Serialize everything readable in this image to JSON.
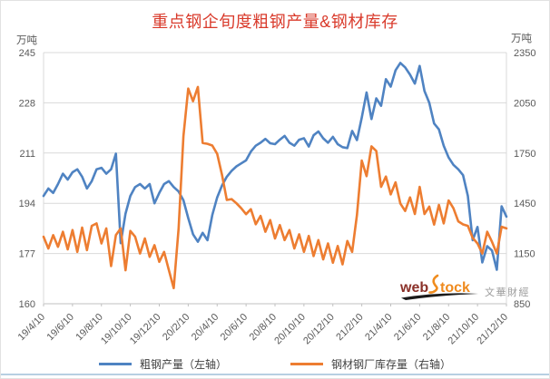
{
  "page": {
    "title": "重点钢企旬度粗钢产量&钢材库存",
    "title_color": "#d93a2b"
  },
  "legend": {
    "items": [
      {
        "label": "粗钢产量（左轴）",
        "color": "#4f83c2"
      },
      {
        "label": "钢材钢厂库存量（右轴）",
        "color": "#ed7d31"
      }
    ]
  },
  "watermark": {
    "brand_web": "web",
    "brand_tock": "tock",
    "brand_cn": "文華財經",
    "web_color": "#8a3028",
    "tock_color": "#ef8a1d",
    "swoosh_color": "#f08c1e",
    "underline_color": "#1a1a1a",
    "cn_color": "#9b9b9b"
  },
  "chart_data": {
    "type": "line",
    "title": "重点钢企旬度粗钢产量&钢材库存",
    "grid_color": "#d9d9d9",
    "axis_line_color": "#c0c0c0",
    "axis_text_color": "#595959",
    "x_label_every": 6,
    "x_tick_labels": [
      "19/4/10",
      "19/6/10",
      "19/8/10",
      "19/10/10",
      "19/12/10",
      "20/2/10",
      "20/4/10",
      "20/6/10",
      "20/8/10",
      "20/10/10",
      "20/12/10",
      "21/2/10",
      "21/4/10",
      "21/6/10",
      "21/8/10",
      "21/10/10",
      "21/12/10"
    ],
    "left_axis": {
      "unit": "万吨",
      "min": 160,
      "max": 245,
      "ticks": [
        245,
        228,
        211,
        194,
        177,
        160
      ]
    },
    "right_axis": {
      "unit": "万吨",
      "min": 850,
      "max": 2350,
      "ticks": [
        2350,
        2050,
        1750,
        1450,
        1150,
        850
      ]
    },
    "series": [
      {
        "name": "粗钢产量（左轴）",
        "axis": "left",
        "color": "#4f83c2",
        "values": [
          196.5,
          199,
          197.5,
          200.5,
          204,
          202,
          204.5,
          205.5,
          203,
          199,
          201.5,
          205.5,
          206,
          204,
          205.5,
          210.8,
          180.5,
          190.5,
          196.5,
          199.5,
          200.5,
          199,
          200.5,
          194,
          197.5,
          200.5,
          201.5,
          199.5,
          198,
          195,
          189,
          183.5,
          181,
          184,
          181.5,
          190,
          196,
          200,
          203,
          205,
          206.5,
          207.5,
          208.5,
          211.5,
          213.5,
          214.5,
          215.8,
          214.3,
          214,
          215.5,
          216.8,
          214.5,
          213.5,
          215.5,
          216,
          213.2,
          217,
          218.3,
          216,
          214.5,
          216.5,
          214,
          213,
          212.7,
          218.5,
          215.4,
          223,
          231.5,
          222.5,
          229.5,
          227,
          236,
          233.5,
          239,
          241.5,
          240,
          237.5,
          234.5,
          240.5,
          232,
          228,
          221,
          219,
          213.5,
          209.5,
          207,
          205.5,
          203.5,
          196.5,
          181.5,
          186,
          174,
          179.5,
          178,
          171.5,
          193,
          189.5
        ]
      },
      {
        "name": "钢材钢厂库存量（右轴）",
        "axis": "right",
        "color": "#ed7d31",
        "values": [
          1250,
          1180,
          1260,
          1190,
          1280,
          1175,
          1290,
          1160,
          1305,
          1170,
          1315,
          1330,
          1210,
          1300,
          1075,
          1260,
          1300,
          1050,
          1285,
          1250,
          1150,
          1240,
          1130,
          1200,
          1100,
          1160,
          1050,
          943,
          1300,
          1850,
          2135,
          2060,
          2145,
          1810,
          1805,
          1795,
          1745,
          1620,
          1470,
          1475,
          1450,
          1420,
          1385,
          1415,
          1325,
          1375,
          1280,
          1350,
          1240,
          1320,
          1230,
          1290,
          1180,
          1265,
          1160,
          1255,
          1135,
          1230,
          1115,
          1210,
          1095,
          1195,
          1085,
          1225,
          1160,
          1380,
          1705,
          1612,
          1790,
          1762,
          1548,
          1610,
          1503,
          1575,
          1449,
          1404,
          1485,
          1386,
          1548,
          1386,
          1430,
          1323,
          1440,
          1330,
          1467,
          1420,
          1342,
          1324,
          1315,
          1243,
          1210,
          1150,
          1280,
          1220,
          1150,
          1310,
          1300
        ]
      }
    ]
  }
}
